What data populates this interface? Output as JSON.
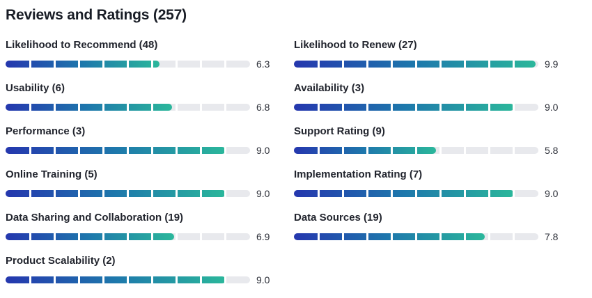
{
  "page": {
    "title": "Reviews and Ratings (257)",
    "total_reviews": 257
  },
  "scale": {
    "min": 0,
    "max": 10,
    "segments_per_bar": 10
  },
  "colors": {
    "gradient_start": "#2537ae",
    "gradient_mid": "#1e78ac",
    "gradient_end": "#2bb79b",
    "track": "#e8e9ed",
    "title_text": "#191d26",
    "label_text": "#22252e",
    "value_text": "#2d3039",
    "background": "#ffffff"
  },
  "ratings": {
    "left": [
      {
        "label": "Likelihood to Recommend (48)",
        "value": "6.3"
      },
      {
        "label": "Usability (6)",
        "value": "6.8"
      },
      {
        "label": "Performance (3)",
        "value": "9.0"
      },
      {
        "label": "Online Training (5)",
        "value": "9.0"
      },
      {
        "label": "Data Sharing and Collaboration (19)",
        "value": "6.9"
      },
      {
        "label": "Product Scalability (2)",
        "value": "9.0"
      }
    ],
    "right": [
      {
        "label": "Likelihood to Renew (27)",
        "value": "9.9"
      },
      {
        "label": "Availability (3)",
        "value": "9.0"
      },
      {
        "label": "Support Rating (9)",
        "value": "5.8"
      },
      {
        "label": "Implementation Rating (7)",
        "value": "9.0"
      },
      {
        "label": "Data Sources (19)",
        "value": "7.8"
      }
    ]
  },
  "chart_data": {
    "type": "bar",
    "orientation": "horizontal",
    "title": "Reviews and Ratings (257)",
    "categories": [
      "Likelihood to Recommend (48)",
      "Usability (6)",
      "Performance (3)",
      "Online Training (5)",
      "Data Sharing and Collaboration (19)",
      "Product Scalability (2)",
      "Likelihood to Renew (27)",
      "Availability (3)",
      "Support Rating (9)",
      "Implementation Rating (7)",
      "Data Sources (19)"
    ],
    "values": [
      6.3,
      6.8,
      9.0,
      9.0,
      6.9,
      9.0,
      9.9,
      9.0,
      5.8,
      9.0,
      7.8
    ],
    "xlabel": "",
    "ylabel": "",
    "xlim": [
      0,
      10
    ],
    "grid": false,
    "legend": false,
    "layout": "two-column"
  }
}
